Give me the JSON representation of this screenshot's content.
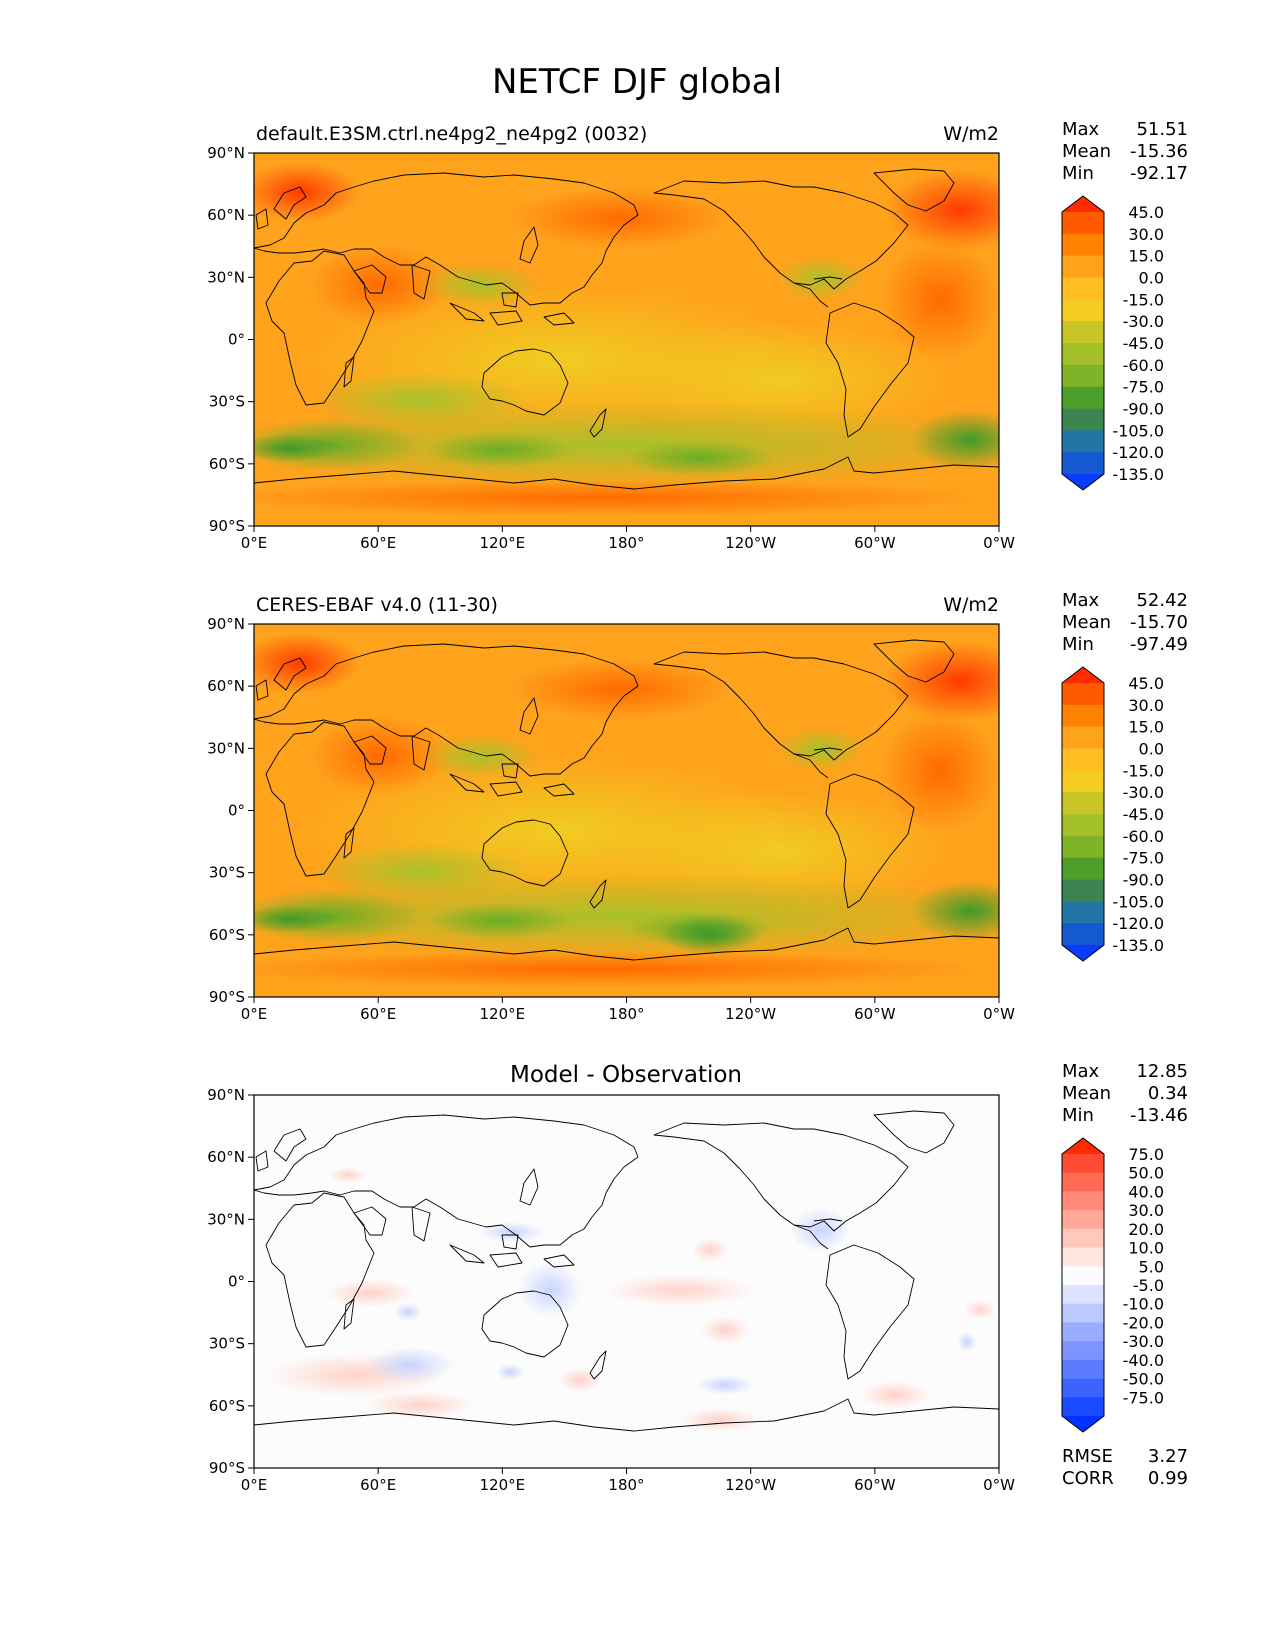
{
  "figure_title": "NETCF DJF global",
  "lon_ticks": [
    "0°E",
    "60°E",
    "120°E",
    "180°",
    "120°W",
    "60°W",
    "0°W"
  ],
  "lat_ticks": [
    "90°N",
    "60°N",
    "30°N",
    "0°",
    "30°S",
    "60°S",
    "90°S"
  ],
  "abs_colors": [
    "#ff2a00",
    "#ff5a00",
    "#ff8200",
    "#ffa41a",
    "#ffbf22",
    "#f4cc22",
    "#c7c626",
    "#a4c12a",
    "#7fb428",
    "#4e9e2c",
    "#3d8550",
    "#2275a4",
    "#1559d0",
    "#0a3cff"
  ],
  "abs_levels": [
    "45.0",
    "30.0",
    "15.0",
    "0.0",
    "-15.0",
    "-30.0",
    "-45.0",
    "-60.0",
    "-75.0",
    "-90.0",
    "-105.0",
    "-120.0",
    "-135.0"
  ],
  "diff_colors": [
    "#ff2a00",
    "#ff4b33",
    "#ff6b55",
    "#ff8a77",
    "#ffaa99",
    "#ffc8bd",
    "#ffe6e0",
    "#fcfcfc",
    "#dde3ff",
    "#bcc8ff",
    "#9aacff",
    "#7c94ff",
    "#5c7cff",
    "#3d63ff",
    "#1a4aff",
    "#0033ff"
  ],
  "diff_levels": [
    "75.0",
    "50.0",
    "40.0",
    "30.0",
    "20.0",
    "10.0",
    "5.0",
    "-5.0",
    "-10.0",
    "-20.0",
    "-30.0",
    "-40.0",
    "-50.0",
    "-75.0"
  ],
  "panels": [
    {
      "title": "default.E3SM.ctrl.ne4pg2_ne4pg2 (0032)",
      "units": "W/m2",
      "stats": {
        "max_label": "Max",
        "max": "51.51",
        "mean_label": "Mean",
        "mean": "-15.36",
        "min_label": "Min",
        "min": "-92.17"
      }
    },
    {
      "title": "CERES-EBAF v4.0 (11-30)",
      "units": "W/m2",
      "stats": {
        "max_label": "Max",
        "max": "52.42",
        "mean_label": "Mean",
        "mean": "-15.70",
        "min_label": "Min",
        "min": "-97.49"
      }
    },
    {
      "title": "Model - Observation",
      "units": "",
      "stats": {
        "max_label": "Max",
        "max": "12.85",
        "mean_label": "Mean",
        "mean": "0.34",
        "min_label": "Min",
        "min": "-13.46"
      },
      "metrics": {
        "rmse_label": "RMSE",
        "rmse": "3.27",
        "corr_label": "CORR",
        "corr": "0.99"
      }
    }
  ],
  "chart_data": [
    {
      "type": "heatmap",
      "title": "default.E3SM.ctrl.ne4pg2_ne4pg2 (0032)",
      "units": "W/m2",
      "x": "longitude",
      "xlim": [
        0,
        360
      ],
      "y": "latitude",
      "ylim": [
        -90,
        90
      ],
      "levels": [
        -135,
        -120,
        -105,
        -90,
        -75,
        -60,
        -45,
        -30,
        -15,
        0,
        15,
        30,
        45
      ],
      "stats": {
        "max": 51.51,
        "mean": -15.36,
        "min": -92.17
      }
    },
    {
      "type": "heatmap",
      "title": "CERES-EBAF v4.0 (11-30)",
      "units": "W/m2",
      "x": "longitude",
      "xlim": [
        0,
        360
      ],
      "y": "latitude",
      "ylim": [
        -90,
        90
      ],
      "levels": [
        -135,
        -120,
        -105,
        -90,
        -75,
        -60,
        -45,
        -30,
        -15,
        0,
        15,
        30,
        45
      ],
      "stats": {
        "max": 52.42,
        "mean": -15.7,
        "min": -97.49
      }
    },
    {
      "type": "heatmap",
      "title": "Model - Observation",
      "x": "longitude",
      "xlim": [
        0,
        360
      ],
      "y": "latitude",
      "ylim": [
        -90,
        90
      ],
      "levels": [
        -75,
        -50,
        -40,
        -30,
        -20,
        -10,
        -5,
        5,
        10,
        20,
        30,
        40,
        50,
        75
      ],
      "stats": {
        "max": 12.85,
        "mean": 0.34,
        "min": -13.46
      },
      "rmse": 3.27,
      "corr": 0.99
    }
  ]
}
